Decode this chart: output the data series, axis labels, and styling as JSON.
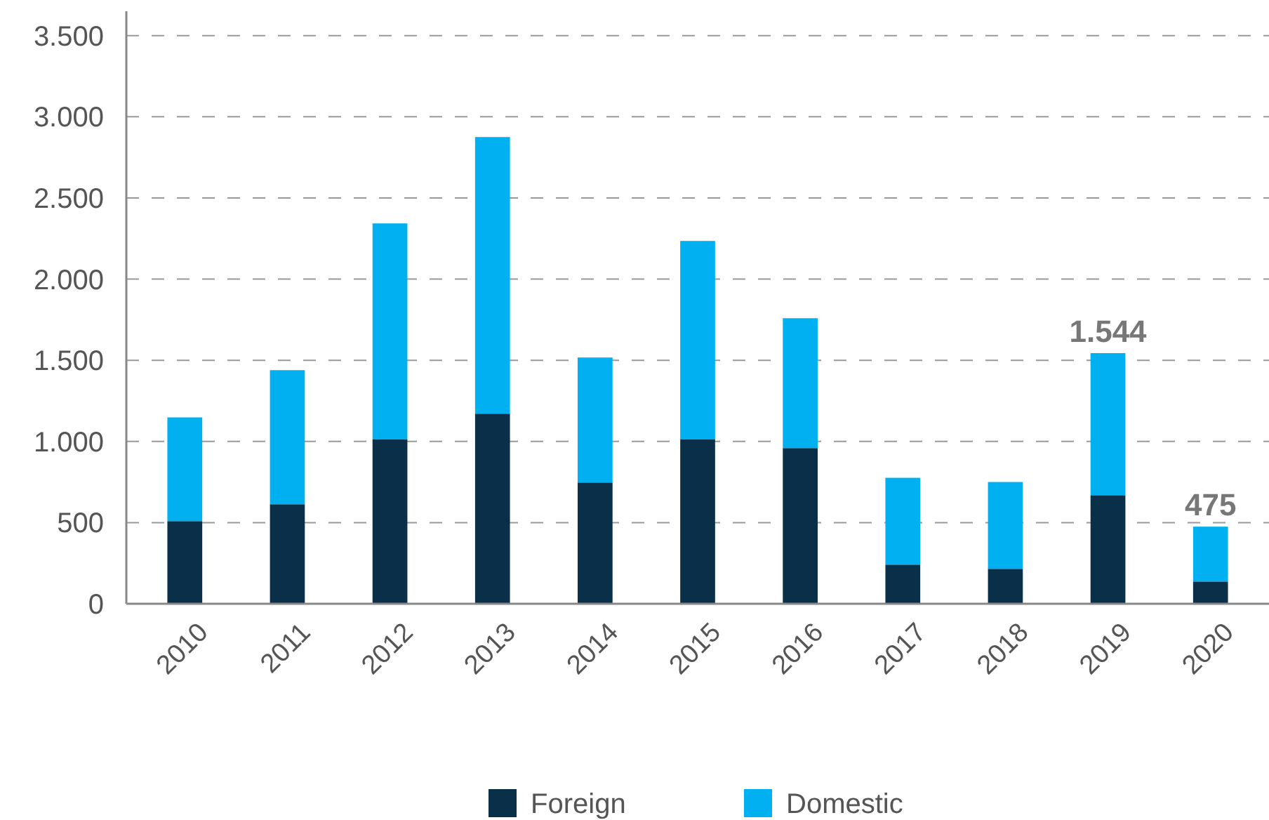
{
  "chart_data": {
    "type": "bar",
    "stacked": true,
    "categories": [
      "2010",
      "2011",
      "2012",
      "2013",
      "2014",
      "2015",
      "2016",
      "2017",
      "2018",
      "2019",
      "2020"
    ],
    "series": [
      {
        "name": "Foreign",
        "color": "#0a3049",
        "values": [
          509,
          613,
          1012,
          1171,
          747,
          1012,
          959,
          241,
          215,
          669,
          137
        ]
      },
      {
        "name": "Domestic",
        "color": "#00b0f0",
        "values": [
          639,
          826,
          1331,
          1704,
          770,
          1223,
          800,
          535,
          535,
          875,
          338
        ]
      }
    ],
    "totals": [
      null,
      null,
      null,
      null,
      null,
      null,
      null,
      null,
      null,
      "1.544",
      "475"
    ],
    "ylim": [
      0,
      3650
    ],
    "yticks": [
      0,
      500,
      {
        "value": 1000,
        "label": "1.000"
      },
      {
        "value": 1500,
        "label": "1.500"
      },
      {
        "value": 2000,
        "label": "2.000"
      },
      {
        "value": 2500,
        "label": "2.500"
      },
      {
        "value": 3000,
        "label": "3.000"
      },
      {
        "value": 3500,
        "label": "3.500"
      }
    ],
    "grid": "y",
    "legend": "bottom"
  }
}
